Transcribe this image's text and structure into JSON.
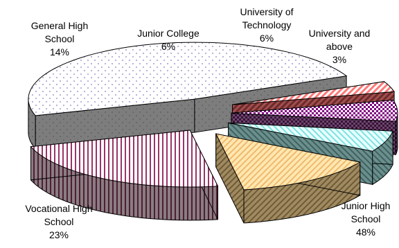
{
  "chart_data": {
    "type": "pie",
    "style": "exploded 3D pie",
    "title": "",
    "slices": [
      {
        "label": "Junior High School",
        "label_lines": [
          "Junior High",
          "School"
        ],
        "value": 48,
        "value_label": "48%",
        "top_color": "#ffffff",
        "side_color": "#808080",
        "pattern": "dots"
      },
      {
        "label": "Vocational High School",
        "label_lines": [
          "Vocational High",
          "School"
        ],
        "value": 23,
        "value_label": "23%",
        "top_color": "#ffffff",
        "side_color": "#6e5a60",
        "pattern": "vertical-stripes"
      },
      {
        "label": "General High School",
        "label_lines": [
          "General High",
          "School"
        ],
        "value": 14,
        "value_label": "14%",
        "top_color": "#ffe0a0",
        "side_color": "#8a7550",
        "pattern": "diagonal-stripes"
      },
      {
        "label": "Junior College",
        "label_lines": [
          "Junior College"
        ],
        "value": 6,
        "value_label": "6%",
        "top_color": "#c8ffff",
        "side_color": "#4f7a78",
        "pattern": "diagonal-stripes"
      },
      {
        "label": "University of Technology",
        "label_lines": [
          "University of",
          "Technology"
        ],
        "value": 6,
        "value_label": "6%",
        "top_color": "#800080",
        "side_color": "#4a1f4a",
        "pattern": "checker"
      },
      {
        "label": "University and above",
        "label_lines": [
          "University and",
          "above"
        ],
        "value": 3,
        "value_label": "3%",
        "top_color": "#ff9999",
        "side_color": "#8b3a3a",
        "pattern": "diagonal-stripes"
      }
    ],
    "legend": "none",
    "labels_outside": true
  }
}
